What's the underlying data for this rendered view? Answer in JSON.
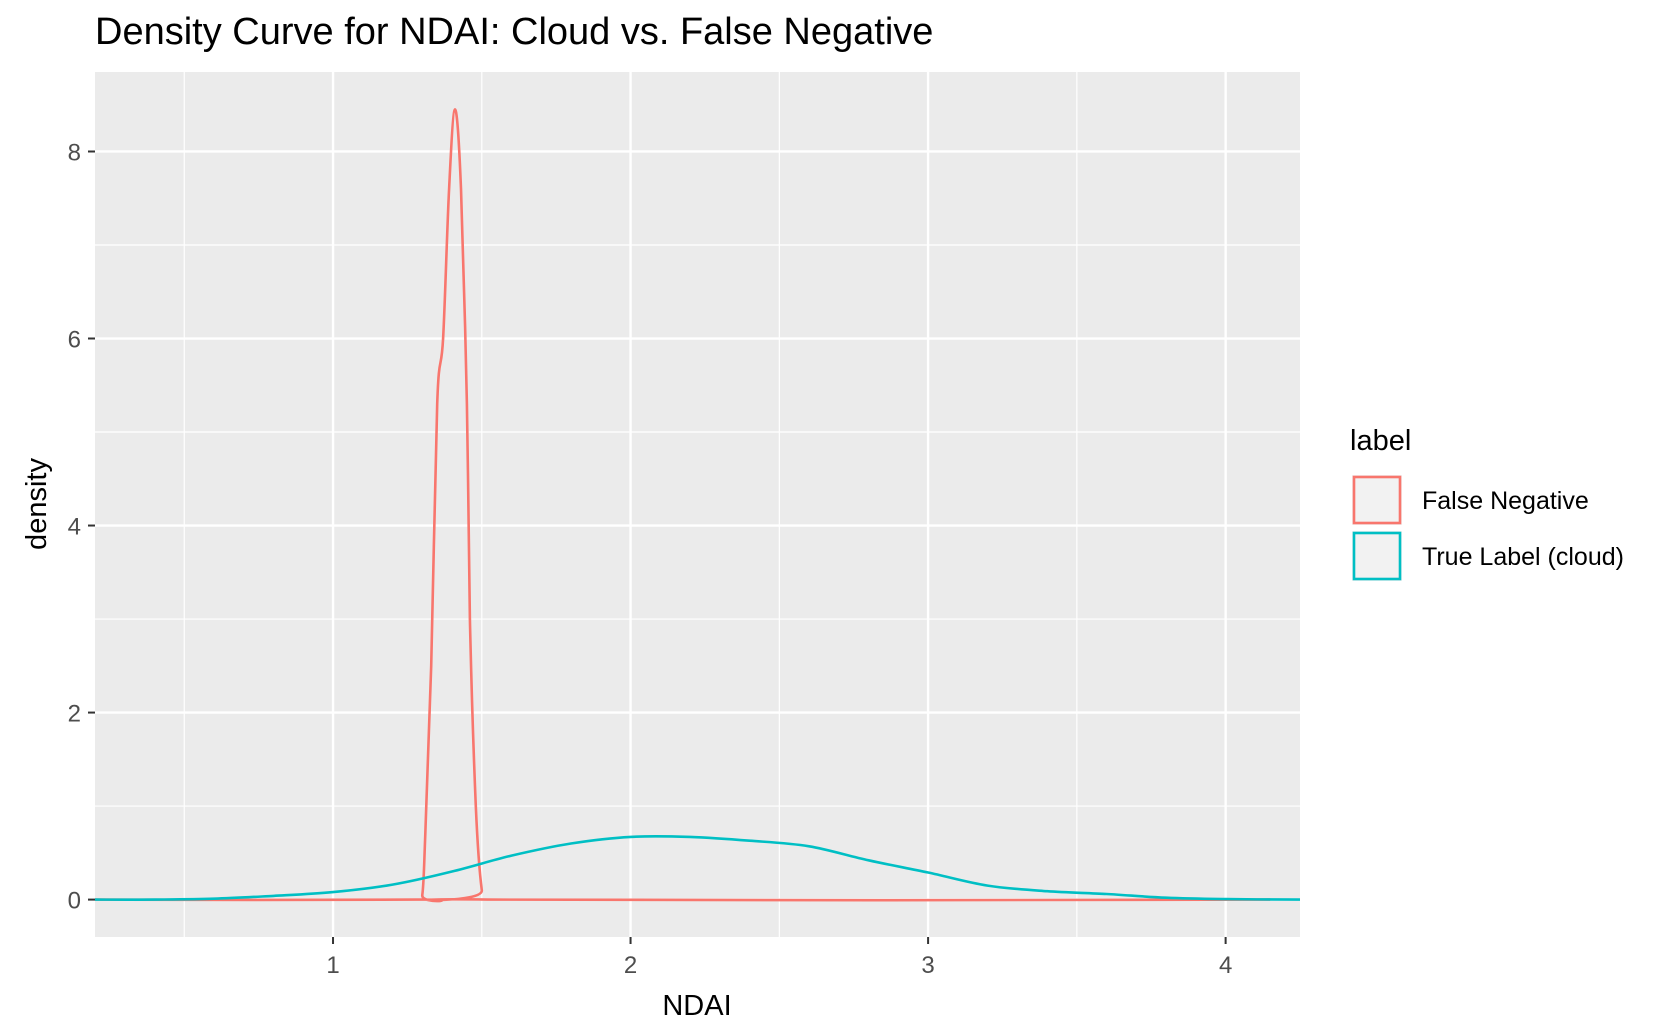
{
  "chart_data": {
    "type": "line",
    "title": "Density Curve for NDAI: Cloud vs. False Negative",
    "xlabel": "NDAI",
    "ylabel": "density",
    "xlim": [
      0.2,
      4.25
    ],
    "ylim": [
      -0.4,
      8.85
    ],
    "x_ticks": [
      1,
      2,
      3,
      4
    ],
    "x_tick_labels": [
      "1",
      "2",
      "3",
      "4"
    ],
    "y_ticks": [
      0,
      2,
      4,
      6,
      8
    ],
    "y_tick_labels": [
      "0",
      "2",
      "4",
      "6",
      "8"
    ],
    "grid": true,
    "legend": {
      "title": "label",
      "position": "right",
      "entries": [
        "False Negative",
        "True Label (cloud)"
      ]
    },
    "series": [
      {
        "name": "False Negative",
        "color": "#F8766D",
        "x": [
          0.2,
          1.28,
          1.3,
          1.31,
          1.33,
          1.35,
          1.37,
          1.39,
          1.41,
          1.43,
          1.45,
          1.46,
          1.48,
          1.5,
          1.52,
          4.15
        ],
        "y": [
          0,
          0,
          0.05,
          0.7,
          2.5,
          5.3,
          6.0,
          7.6,
          8.45,
          7.6,
          5.3,
          3.0,
          1.0,
          0.1,
          0,
          0
        ]
      },
      {
        "name": "True Label (cloud)",
        "color": "#00BFC4",
        "x": [
          0.2,
          0.4,
          0.6,
          0.8,
          1.0,
          1.2,
          1.4,
          1.6,
          1.8,
          2.0,
          2.2,
          2.4,
          2.6,
          2.8,
          3.0,
          3.2,
          3.4,
          3.6,
          3.8,
          4.0,
          4.25
        ],
        "y": [
          0,
          0,
          0.01,
          0.04,
          0.08,
          0.16,
          0.3,
          0.47,
          0.6,
          0.67,
          0.67,
          0.63,
          0.57,
          0.42,
          0.29,
          0.15,
          0.09,
          0.06,
          0.02,
          0.005,
          0
        ]
      }
    ]
  }
}
